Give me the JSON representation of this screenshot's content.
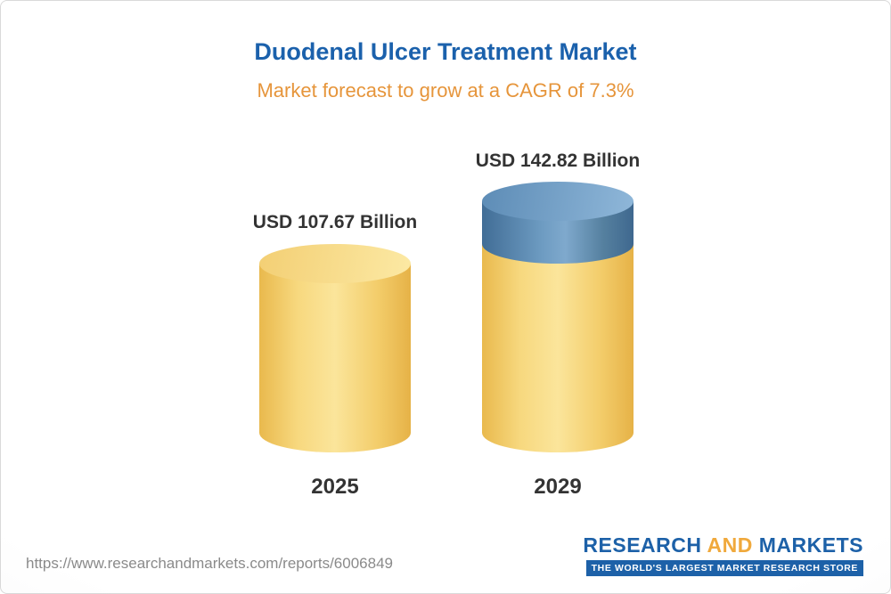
{
  "header": {
    "title": "Duodenal Ulcer Treatment Market",
    "subtitle": "Market forecast to grow at a CAGR of 7.3%"
  },
  "chart_data": {
    "type": "bar",
    "title": "Duodenal Ulcer Treatment Market",
    "subtitle": "Market forecast to grow at a CAGR of 7.3%",
    "bar_style": "3d-cylinder",
    "unit": "USD Billion",
    "cagr": "7.3%",
    "categories": [
      "2025",
      "2029"
    ],
    "values": [
      107.67,
      142.82
    ],
    "data_labels": [
      "USD 107.67 Billion",
      "USD 142.82 Billion"
    ],
    "axes": "none",
    "legend": "none",
    "colors": {
      "base_segment": "#f3cf6e",
      "growth_segment": "#6e9ac3",
      "title_text": "#1b61ac",
      "subtitle_text": "#e6953b"
    }
  },
  "footer": {
    "url": "https://www.researchandmarkets.com/reports/6006849",
    "logo_research": "RESEARCH",
    "logo_and": "AND",
    "logo_markets": "MARKETS",
    "tagline": "THE WORLD'S LARGEST MARKET RESEARCH STORE"
  }
}
